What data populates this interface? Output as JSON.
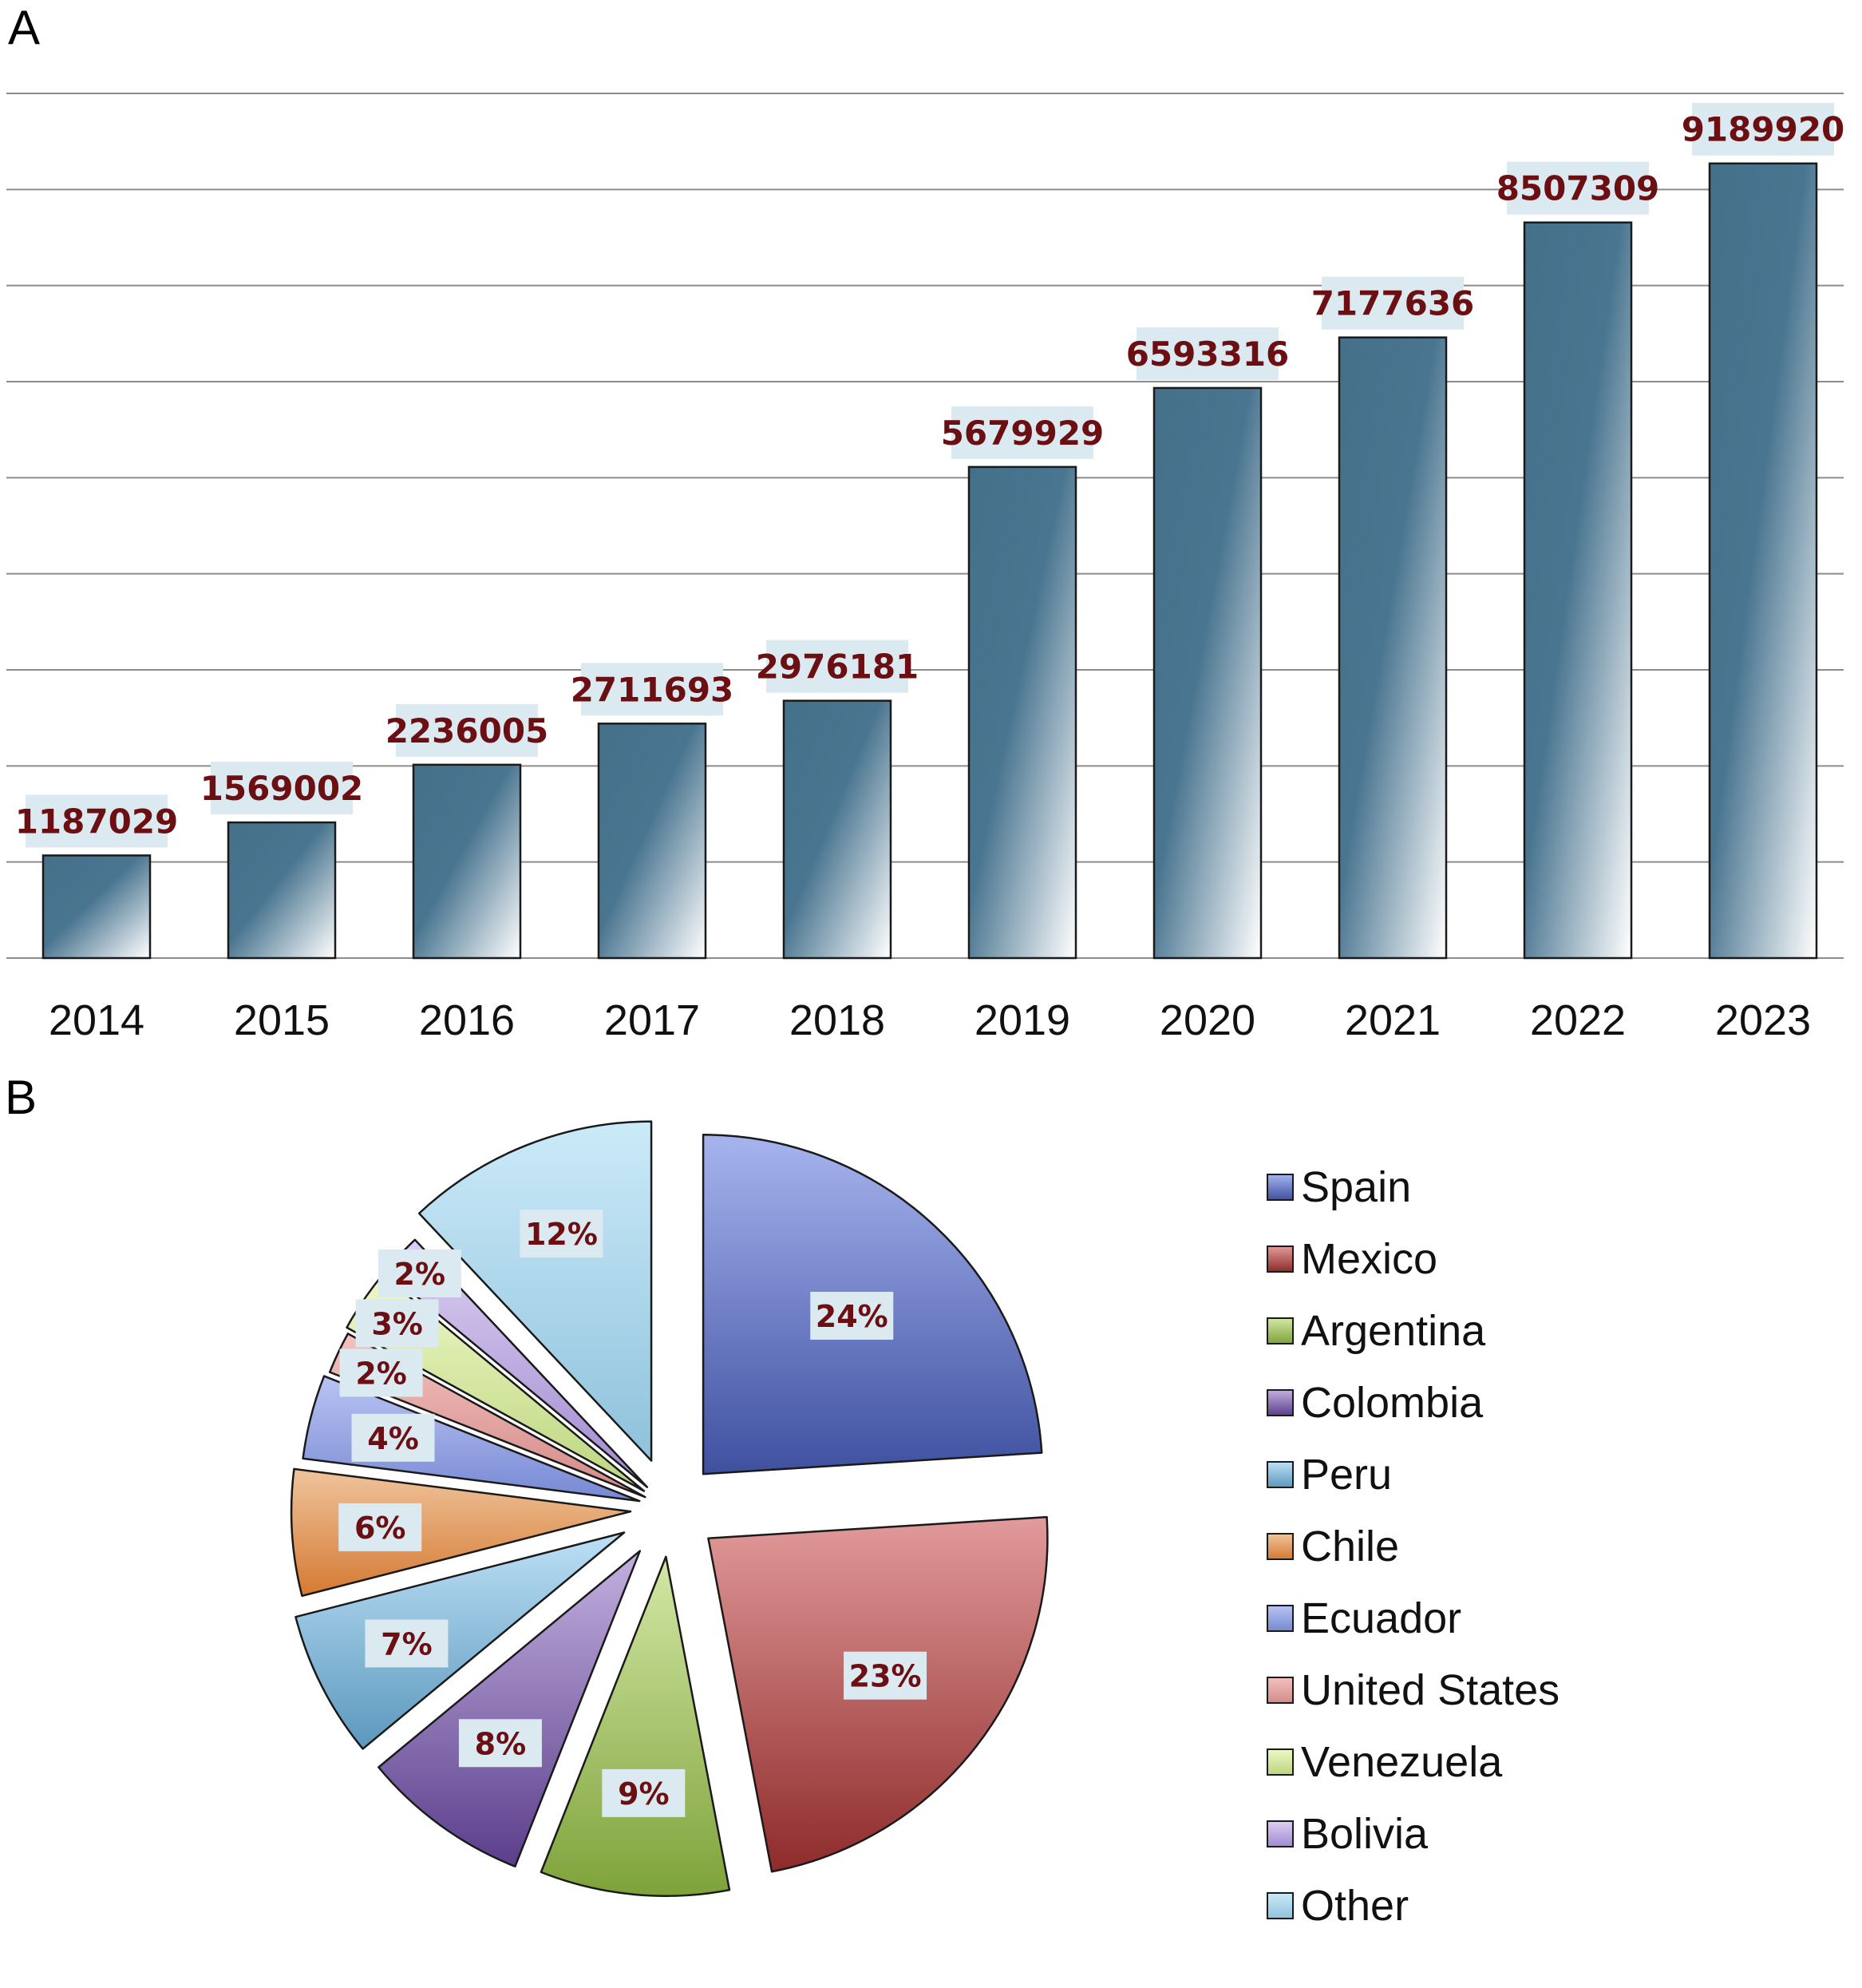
{
  "panels": {
    "a_letter": "A",
    "b_letter": "B"
  },
  "chart_data": [
    {
      "type": "bar",
      "categories": [
        "2014",
        "2015",
        "2016",
        "2017",
        "2018",
        "2019",
        "2020",
        "2021",
        "2022",
        "2023"
      ],
      "values": [
        1187029,
        1569002,
        2236005,
        2711693,
        2976181,
        5679929,
        6593316,
        7177636,
        8507309,
        9189920
      ],
      "ylim": [
        0,
        10000000
      ],
      "grid": true,
      "colors": {
        "bar_dark": "#45708a",
        "bar_light": "#ffffff",
        "label_box": "#dbe9f1",
        "label_text": "#6b0f12"
      }
    },
    {
      "type": "pie",
      "labels": [
        "Spain",
        "Mexico",
        "Argentina",
        "Colombia",
        "Peru",
        "Chile",
        "Ecuador",
        "United States",
        "Venezuela",
        "Bolivia",
        "Other"
      ],
      "values": [
        24,
        23,
        9,
        8,
        7,
        6,
        4,
        2,
        3,
        2,
        12
      ],
      "value_labels": [
        "24%",
        "23%",
        "9%",
        "8%",
        "7%",
        "6%",
        "4%",
        "2%",
        "3%",
        "2%",
        "12%"
      ],
      "legend_position": "right",
      "colors": [
        [
          "#a6b4ee",
          "#3f50a0"
        ],
        [
          "#e29a9a",
          "#8e2b2b"
        ],
        [
          "#d3e8a5",
          "#7ea23a"
        ],
        [
          "#c3b0df",
          "#5b3e8c"
        ],
        [
          "#bde0f6",
          "#5b98bd"
        ],
        [
          "#f0c49c",
          "#d57a33"
        ],
        [
          "#b9c4f3",
          "#7788d3"
        ],
        [
          "#f3c2c0",
          "#d38a87"
        ],
        [
          "#eef8c6",
          "#bcd57e"
        ],
        [
          "#dccff2",
          "#a18ad0"
        ],
        [
          "#cbeaf8",
          "#8fc2dc"
        ]
      ]
    }
  ]
}
